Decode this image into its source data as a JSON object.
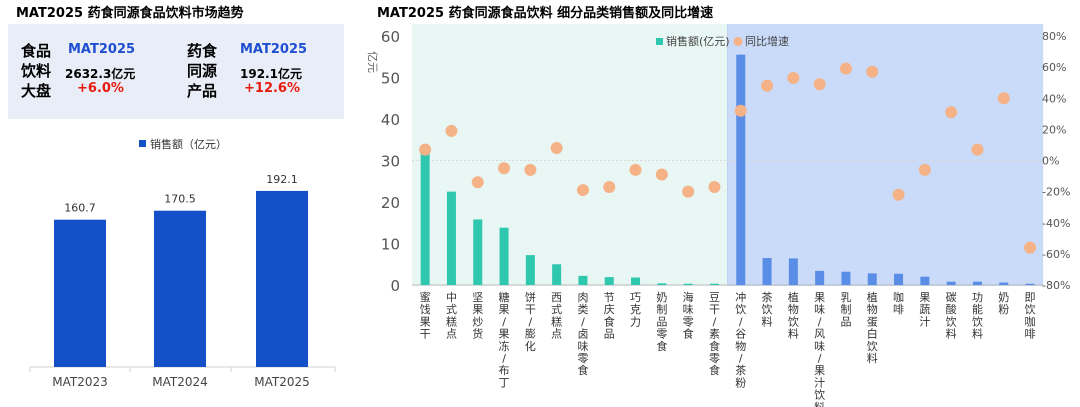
{
  "left_title": "MAT2025 药食同源食品饮料市场趋势",
  "right_title": "MAT2025 药食同源食品饮料 细分品类销售额及同比增速",
  "summary": {
    "food": {
      "label_lines": [
        "食品",
        "饮料",
        "大盘"
      ],
      "period": "MAT2025",
      "value": "2632.3亿元",
      "change": "+6.0%"
    },
    "medicinal": {
      "label_lines": [
        "药食",
        "同源",
        "产品"
      ],
      "period": "MAT2025",
      "value": "192.1亿元",
      "change": "+12.6%"
    }
  },
  "colors": {
    "left_bar": "#1450c8",
    "food_bar": "#2fc7ad",
    "beverage_bar": "#5a8de6",
    "growth_dot": "#f5b286",
    "food_bg": "#e8f7f4",
    "beverage_bg": "#c9dbf8",
    "summary_bg": "#e9edf7"
  },
  "chart_data": [
    {
      "type": "bar",
      "title": "",
      "legend": [
        "销售额（亿元）"
      ],
      "legend_position": "top",
      "categories": [
        "MAT2023",
        "MAT2024",
        "MAT2025"
      ],
      "values": [
        160.7,
        170.5,
        192.1
      ],
      "labels": [
        "160.7",
        "170.5",
        "192.1"
      ],
      "ylim": [
        0,
        240
      ],
      "grid": false
    },
    {
      "type": "bar",
      "title": "",
      "legend": [
        "销售额(亿元)",
        "同比增速"
      ],
      "legend_position": "top",
      "y_axis_left_unit": "亿元",
      "y_ticks_left": [
        "0",
        "10",
        "20",
        "30",
        "40",
        "50",
        "60"
      ],
      "ylim_left": [
        0,
        60
      ],
      "y_ticks_right": [
        "-80%",
        "-60%",
        "-40%",
        "-20%",
        "0%",
        "20%",
        "40%",
        "60%",
        "80%"
      ],
      "ylim_right": [
        -80,
        80
      ],
      "grid": false,
      "groups": [
        {
          "name": "food",
          "categories": [
            "蜜饯果干",
            "中式糕点",
            "坚果炒货",
            "糖果/果冻/布丁",
            "饼干/膨化",
            "西式糕点",
            "肉类/卤味零食",
            "节庆食品",
            "巧克力",
            "奶制品零食",
            "海味零食",
            "豆干/素食零食"
          ]
        },
        {
          "name": "beverage",
          "categories": [
            "冲饮/谷物/茶粉",
            "茶饮料",
            "植物饮料",
            "果味/风味/果汁饮料",
            "乳制品",
            "植物蛋白饮料",
            "咖啡",
            "果蔬汁",
            "碳酸饮料",
            "功能饮料",
            "奶粉",
            "即饮咖啡"
          ]
        }
      ],
      "series": [
        {
          "name": "销售额(亿元)",
          "type": "bar",
          "values": [
            32,
            22.5,
            15.8,
            13.8,
            7.2,
            5,
            2.2,
            1.9,
            1.8,
            0.4,
            0.3,
            0.3,
            55.5,
            6.5,
            6.4,
            3.4,
            3.2,
            2.8,
            2.7,
            2,
            0.8,
            0.8,
            0.6,
            0.3
          ]
        },
        {
          "name": "同比增速",
          "type": "scatter",
          "values": [
            7,
            19,
            -14,
            -5,
            -6,
            8,
            -19,
            -17,
            -6,
            -9,
            -20,
            -17,
            32,
            48,
            53,
            49,
            59,
            57,
            -22,
            -6,
            31,
            7,
            40,
            -56
          ]
        }
      ]
    }
  ]
}
